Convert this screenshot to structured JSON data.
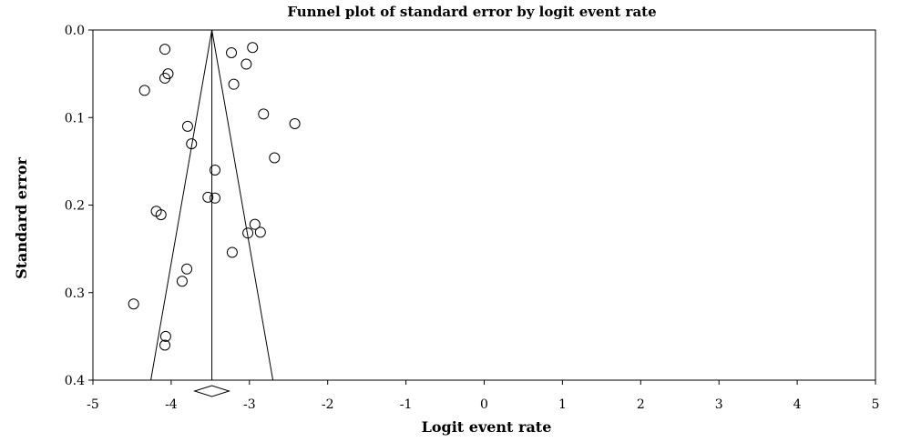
{
  "chart_data": {
    "type": "scatter",
    "title": "Funnel plot of standard error by logit event rate",
    "xlabel": "Logit event rate",
    "ylabel": "Standard error",
    "xlim": [
      -5,
      5
    ],
    "ylim": [
      0.0,
      0.4
    ],
    "y_reversed": true,
    "x_ticks": [
      -5,
      -4,
      -3,
      -2,
      -1,
      0,
      1,
      2,
      3,
      4,
      5
    ],
    "y_ticks": [
      0.0,
      0.1,
      0.2,
      0.3,
      0.4
    ],
    "x_tick_labels": [
      "-5",
      "-4",
      "-3",
      "-2",
      "-1",
      "0",
      "1",
      "2",
      "3",
      "4",
      "5"
    ],
    "y_tick_labels": [
      "0.0",
      "0.1",
      "0.2",
      "0.3",
      "0.4"
    ],
    "grid": false,
    "legend": "none",
    "summary_estimate": -3.48,
    "summary_diamond": {
      "low": -3.7,
      "high": -3.26
    },
    "funnel": {
      "apex": [
        -3.48,
        0.0
      ],
      "base_left": [
        -4.26,
        0.4
      ],
      "base_right": [
        -2.7,
        0.4
      ]
    },
    "points": [
      {
        "x": -4.08,
        "y": 0.022
      },
      {
        "x": -2.96,
        "y": 0.02
      },
      {
        "x": -3.23,
        "y": 0.026
      },
      {
        "x": -3.04,
        "y": 0.039
      },
      {
        "x": -4.04,
        "y": 0.05
      },
      {
        "x": -4.08,
        "y": 0.055
      },
      {
        "x": -3.2,
        "y": 0.062
      },
      {
        "x": -4.34,
        "y": 0.069
      },
      {
        "x": -2.82,
        "y": 0.096
      },
      {
        "x": -2.42,
        "y": 0.107
      },
      {
        "x": -3.79,
        "y": 0.11
      },
      {
        "x": -3.74,
        "y": 0.13
      },
      {
        "x": -2.68,
        "y": 0.146
      },
      {
        "x": -3.44,
        "y": 0.16
      },
      {
        "x": -3.53,
        "y": 0.191
      },
      {
        "x": -3.44,
        "y": 0.192
      },
      {
        "x": -4.19,
        "y": 0.207
      },
      {
        "x": -4.13,
        "y": 0.211
      },
      {
        "x": -2.93,
        "y": 0.222
      },
      {
        "x": -2.86,
        "y": 0.231
      },
      {
        "x": -3.02,
        "y": 0.232
      },
      {
        "x": -3.22,
        "y": 0.254
      },
      {
        "x": -3.8,
        "y": 0.273
      },
      {
        "x": -3.86,
        "y": 0.287
      },
      {
        "x": -4.48,
        "y": 0.313
      },
      {
        "x": -4.07,
        "y": 0.35
      },
      {
        "x": -4.08,
        "y": 0.36
      }
    ],
    "marker": "open-circle",
    "color": "#000000"
  }
}
